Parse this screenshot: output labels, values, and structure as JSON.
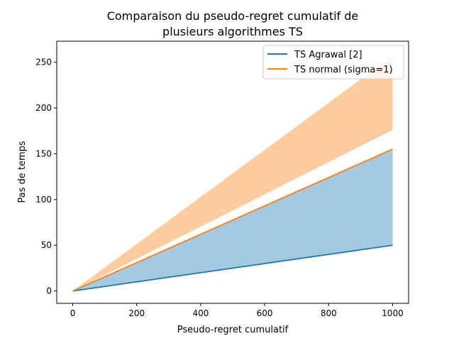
{
  "chart_data": {
    "type": "line",
    "title_lines": [
      "Comparaison du pseudo-regret cumulatif de",
      "plusieurs algorithmes TS"
    ],
    "xlabel": "Pseudo-regret cumulatif",
    "ylabel": "Pas de temps",
    "xlim": [
      -50,
      1050
    ],
    "ylim": [
      -13.5,
      273
    ],
    "xticks": [
      0,
      200,
      400,
      600,
      800,
      1000
    ],
    "yticks": [
      0,
      50,
      100,
      150,
      200,
      250
    ],
    "grid": false,
    "legend": "top-right",
    "series": [
      {
        "name": "TS Agrawal [2]",
        "color": "#1f77b4",
        "x": [
          0,
          1000
        ],
        "y": [
          0,
          50
        ],
        "band_upper": [
          0,
          155
        ],
        "band_lower": [
          0,
          50
        ]
      },
      {
        "name": "TS normal (sigma=1)",
        "color": "#ff7f0e",
        "x": [
          0,
          1000
        ],
        "y": [
          0,
          155
        ],
        "band_upper": [
          0,
          257
        ],
        "band_lower": [
          0,
          176
        ]
      }
    ]
  }
}
